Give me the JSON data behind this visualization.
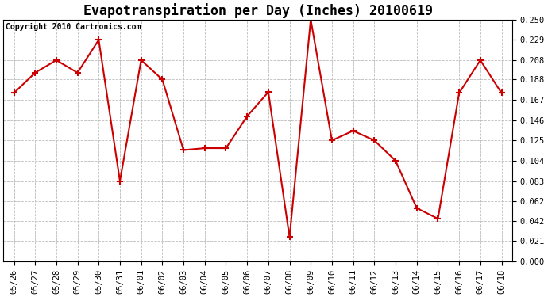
{
  "title": "Evapotranspiration per Day (Inches) 20100619",
  "copyright_text": "Copyright 2010 Cartronics.com",
  "dates": [
    "05/26",
    "05/27",
    "05/28",
    "05/29",
    "05/30",
    "05/31",
    "06/01",
    "06/02",
    "06/03",
    "06/04",
    "06/05",
    "06/06",
    "06/07",
    "06/08",
    "06/09",
    "06/10",
    "06/11",
    "06/12",
    "06/13",
    "06/14",
    "06/15",
    "06/16",
    "06/17",
    "06/18"
  ],
  "values": [
    0.174,
    0.195,
    0.208,
    0.195,
    0.229,
    0.083,
    0.208,
    0.188,
    0.115,
    0.117,
    0.117,
    0.15,
    0.175,
    0.025,
    0.25,
    0.125,
    0.135,
    0.125,
    0.104,
    0.055,
    0.044,
    0.174,
    0.208,
    0.174
  ],
  "yticks": [
    0.0,
    0.021,
    0.042,
    0.062,
    0.083,
    0.104,
    0.125,
    0.146,
    0.167,
    0.188,
    0.208,
    0.229,
    0.25
  ],
  "line_color": "#cc0000",
  "marker": "+",
  "marker_size": 6,
  "marker_edge_width": 1.5,
  "line_width": 1.5,
  "background_color": "#ffffff",
  "grid_color": "#bbbbbb",
  "title_fontsize": 12,
  "tick_fontsize": 7.5,
  "copyright_fontsize": 7,
  "fig_width": 6.9,
  "fig_height": 3.75,
  "dpi": 100
}
